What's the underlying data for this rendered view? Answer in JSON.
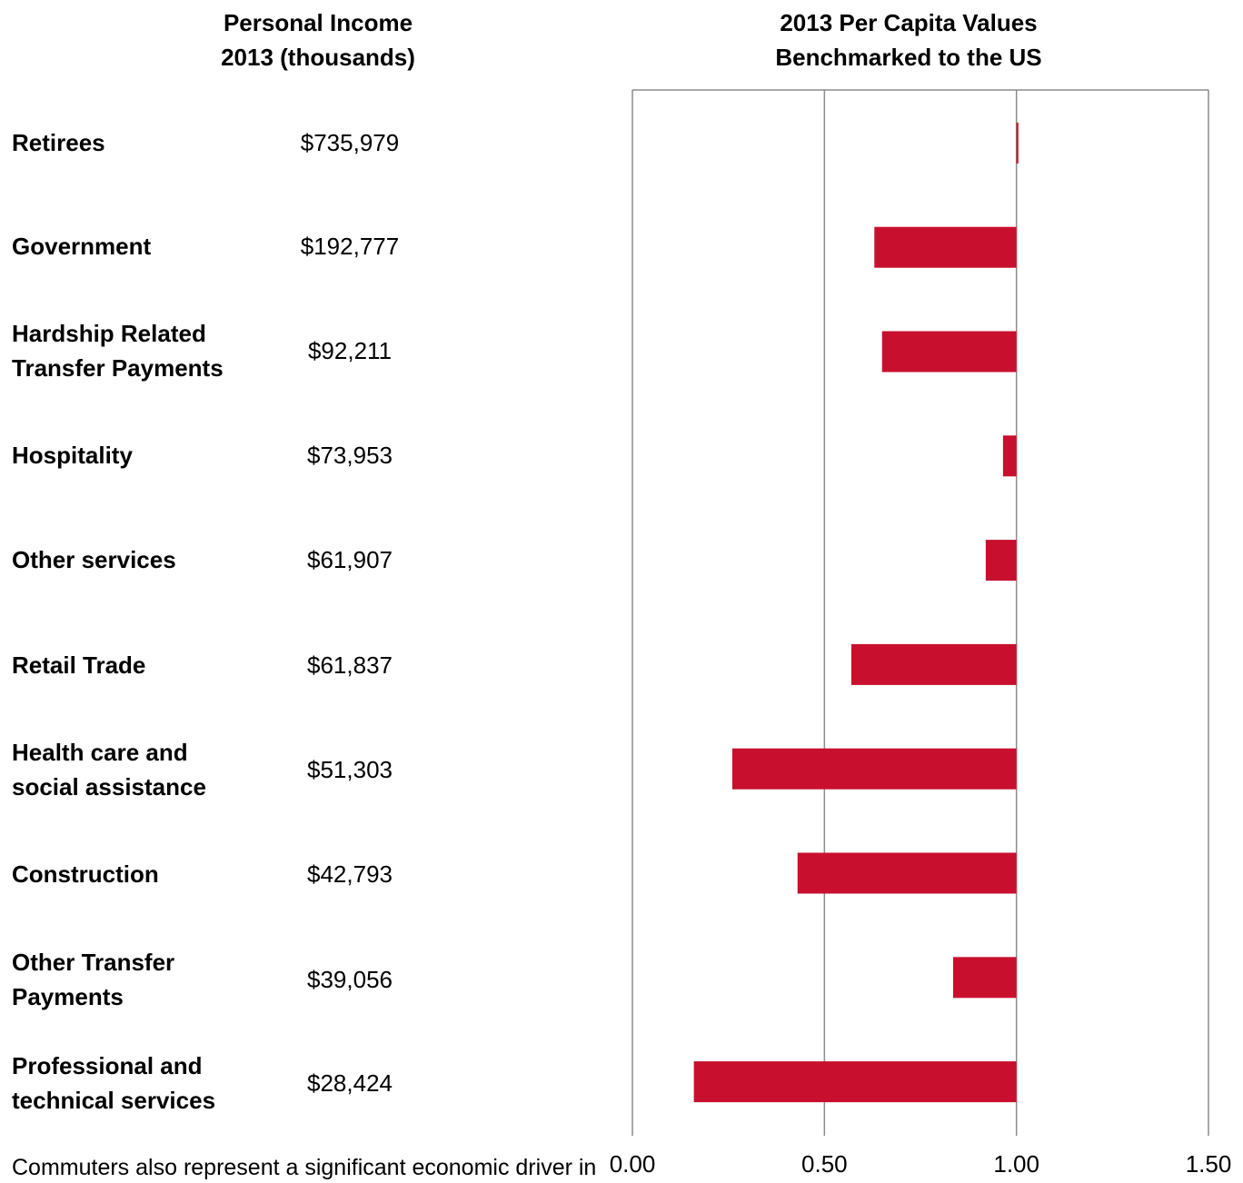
{
  "headers": {
    "left_line1": "Personal Income",
    "left_line2": "2013 (thousands)",
    "right_line1": "2013 Per Capita Values",
    "right_line2": "Benchmarked to the US"
  },
  "rows": [
    {
      "label_line1": "Retirees",
      "label_line2": "",
      "income": "$735,979"
    },
    {
      "label_line1": "Government",
      "label_line2": "",
      "income": "$192,777"
    },
    {
      "label_line1": "Hardship Related",
      "label_line2": "Transfer Payments",
      "income": "$92,211"
    },
    {
      "label_line1": "Hospitality",
      "label_line2": "",
      "income": "$73,953"
    },
    {
      "label_line1": "Other services",
      "label_line2": "",
      "income": "$61,907"
    },
    {
      "label_line1": "Retail Trade",
      "label_line2": "",
      "income": "$61,837"
    },
    {
      "label_line1": "Health care and",
      "label_line2": "social assistance",
      "income": "$51,303"
    },
    {
      "label_line1": "Construction",
      "label_line2": "",
      "income": "$42,793"
    },
    {
      "label_line1": "Other Transfer",
      "label_line2": "Payments",
      "income": "$39,056"
    },
    {
      "label_line1": "Professional and",
      "label_line2": "technical services",
      "income": "$28,424"
    }
  ],
  "chart_data": {
    "type": "bar",
    "orientation": "horizontal",
    "title": "2013 Per Capita Values Benchmarked to the US",
    "categories": [
      "Retirees",
      "Government",
      "Hardship Related Transfer Payments",
      "Hospitality",
      "Other services",
      "Retail Trade",
      "Health care and social assistance",
      "Construction",
      "Other Transfer Payments",
      "Professional and technical services"
    ],
    "values": [
      1.005,
      0.63,
      0.65,
      0.965,
      0.92,
      0.57,
      0.26,
      0.43,
      0.835,
      0.16
    ],
    "baseline": 1.0,
    "xlim": [
      0,
      1.5
    ],
    "xticks": [
      "0.00",
      "0.50",
      "1.00",
      "1.50"
    ],
    "grid": true,
    "bar_color": "#c8102e",
    "grid_color": "#8c8c8c"
  },
  "footer": {
    "text": "Commuters also represent a significant economic driver in"
  }
}
